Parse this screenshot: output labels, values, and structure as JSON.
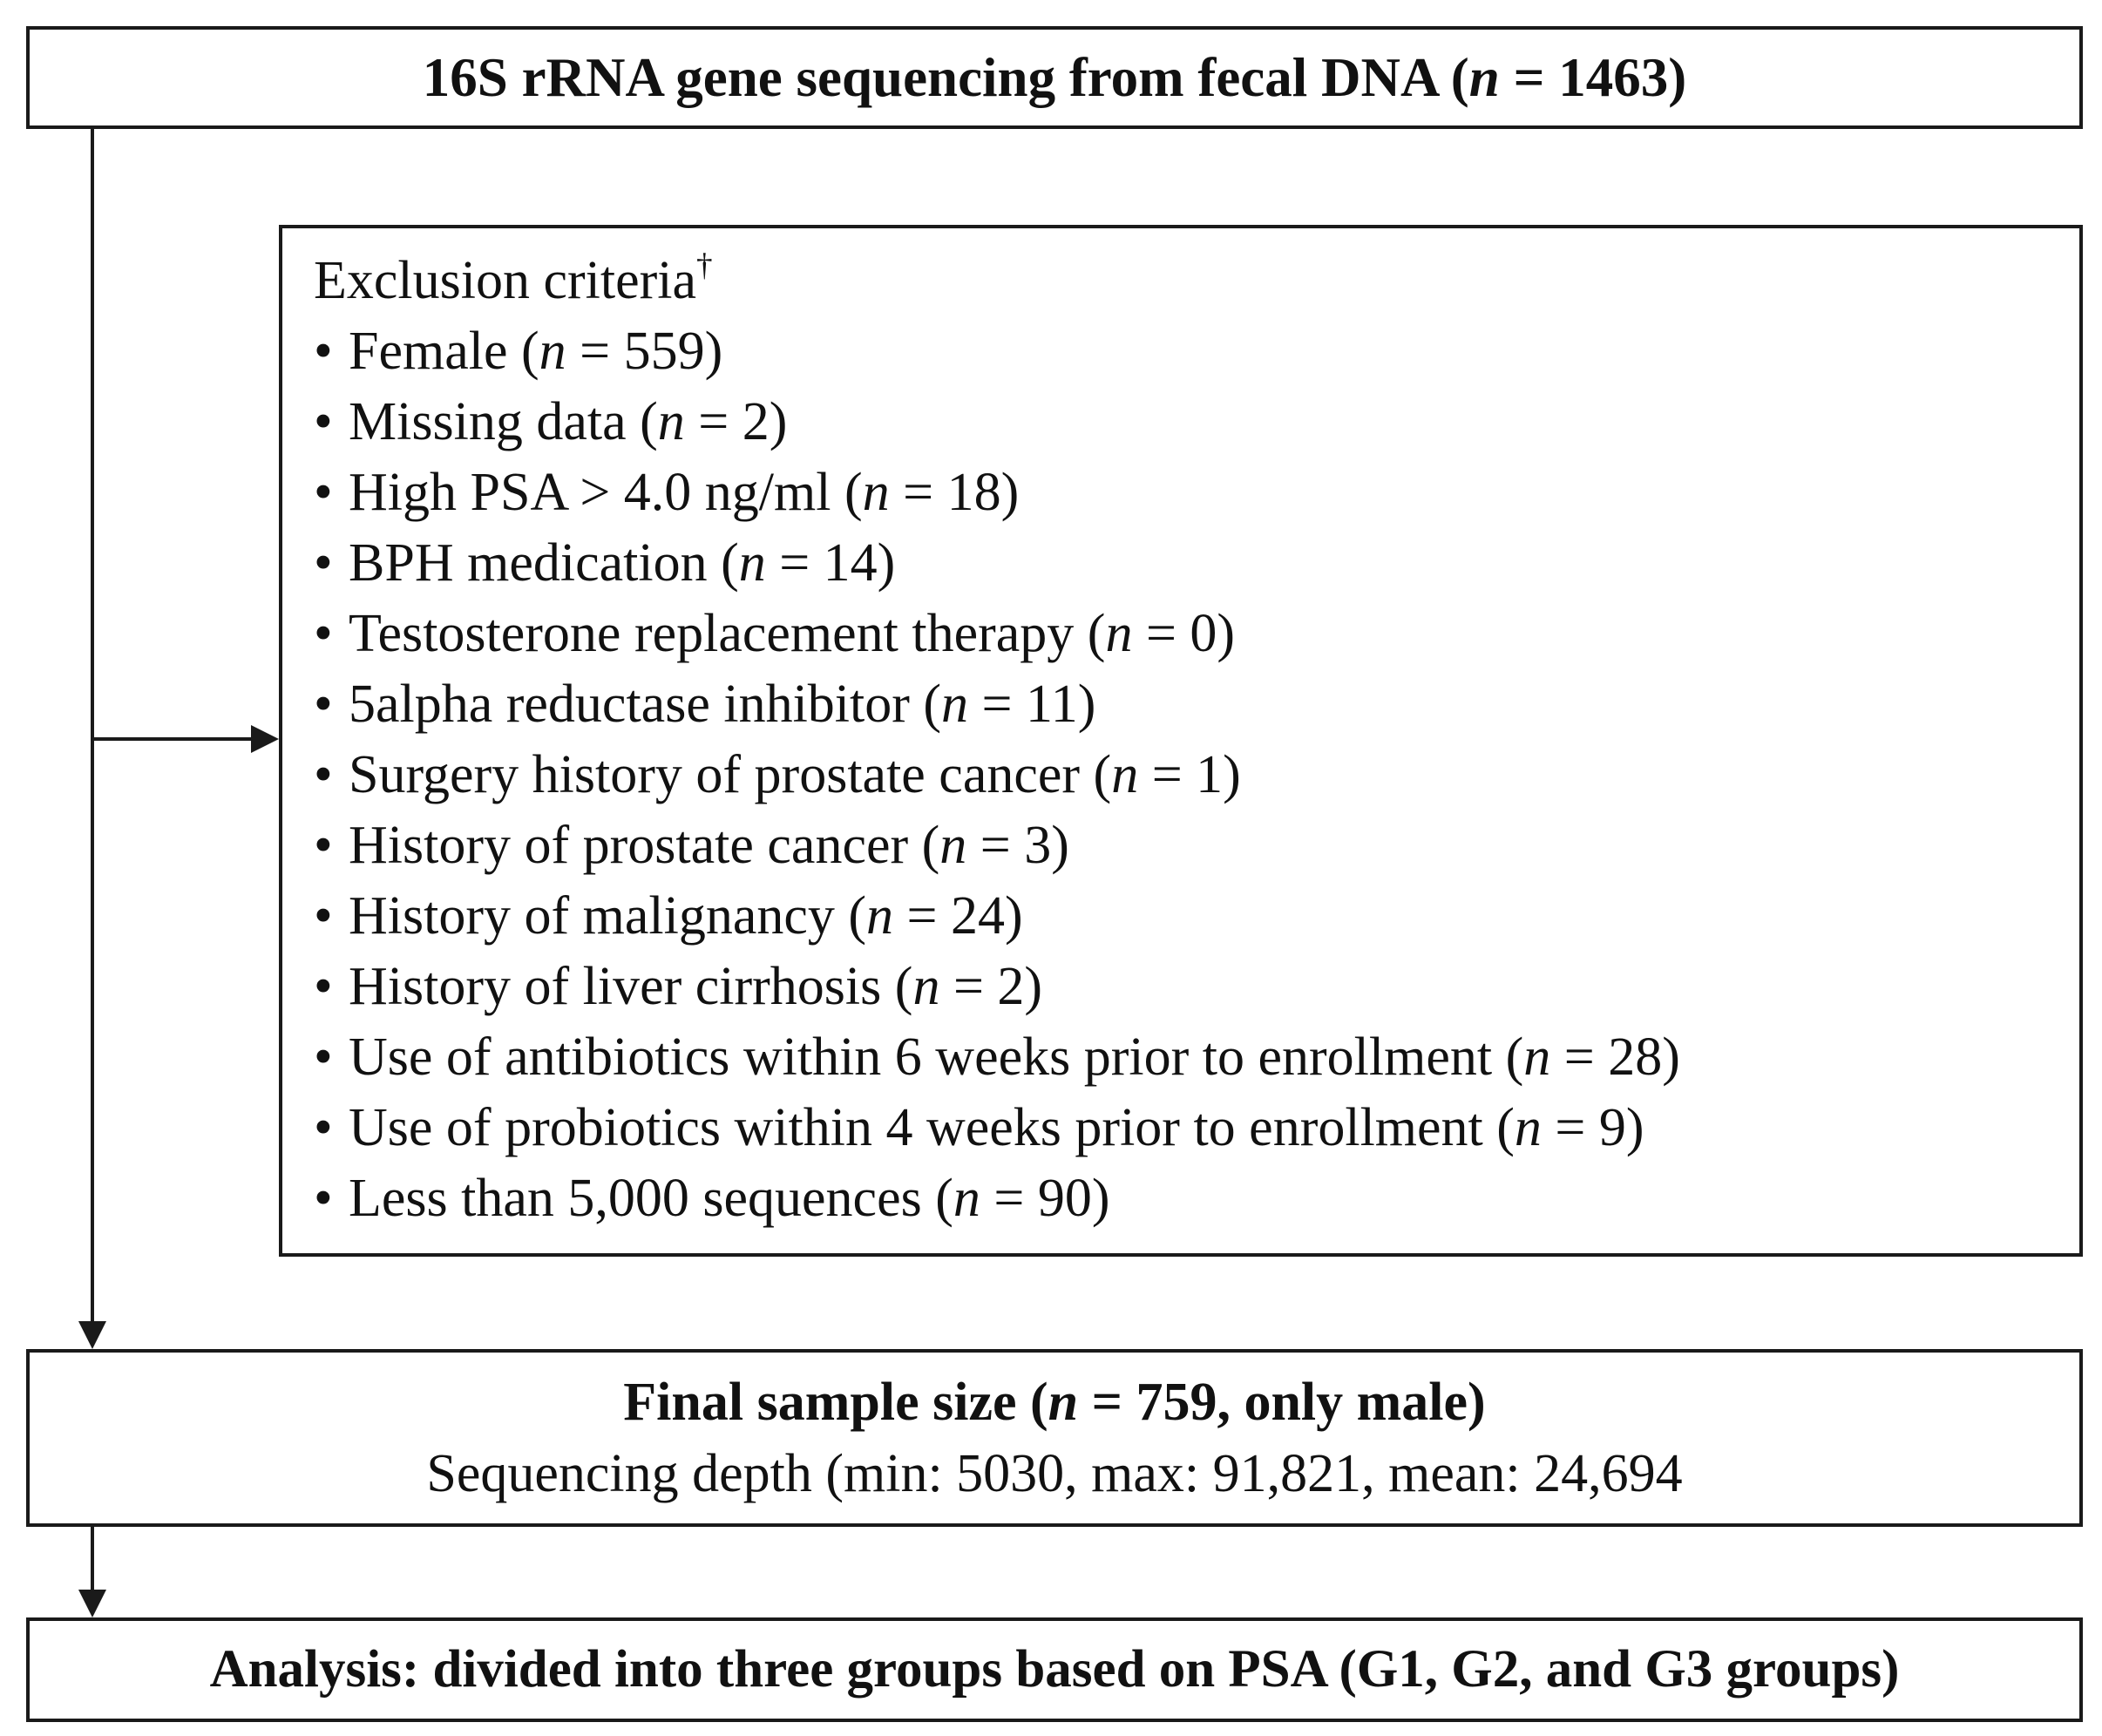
{
  "top_box": {
    "prefix": "16S rRNA gene sequencing from fecal DNA (",
    "n_symbol": "n",
    "suffix": " = 1463)"
  },
  "exclusion": {
    "title": "Exclusion criteria",
    "title_mark": "†",
    "bullet": "•",
    "items": [
      {
        "label": "Female (",
        "n": "n",
        "count": " = 559)"
      },
      {
        "label": "Missing data (",
        "n": "n",
        "count": " = 2)"
      },
      {
        "label": "High PSA > 4.0 ng/ml (",
        "n": "n",
        "count": " = 18)"
      },
      {
        "label": "BPH medication (",
        "n": "n",
        "count": " = 14)"
      },
      {
        "label": "Testosterone replacement therapy (",
        "n": "n",
        "count": " = 0)"
      },
      {
        "label": "5alpha reductase inhibitor (",
        "n": "n",
        "count": " = 11)"
      },
      {
        "label": "Surgery history of prostate cancer (",
        "n": "n",
        "count": " = 1)"
      },
      {
        "label": "History of prostate cancer (",
        "n": "n",
        "count": " = 3)"
      },
      {
        "label": "History of malignancy (",
        "n": "n",
        "count": " = 24)"
      },
      {
        "label": "History of liver cirrhosis (",
        "n": "n",
        "count": " = 2)"
      },
      {
        "label": "Use of antibiotics within 6 weeks prior to enrollment (",
        "n": "n",
        "count": " = 28)"
      },
      {
        "label": "Use of probiotics within 4 weeks prior to enrollment (",
        "n": "n",
        "count": " = 9)"
      },
      {
        "label": "Less than 5,000 sequences (",
        "n": "n",
        "count": " = 90)"
      }
    ]
  },
  "final_box": {
    "title_prefix": "Final sample size (",
    "n_symbol": "n",
    "title_suffix": " = 759, only male)",
    "subtitle": "Sequencing depth (min: 5030, max: 91,821, mean: 24,694"
  },
  "analysis_box": {
    "text": "Analysis: divided into three groups based on PSA (G1, G2, and G3 groups)"
  },
  "colors": {
    "line": "#1a1a1a",
    "text": "#111111",
    "background": "#ffffff"
  }
}
